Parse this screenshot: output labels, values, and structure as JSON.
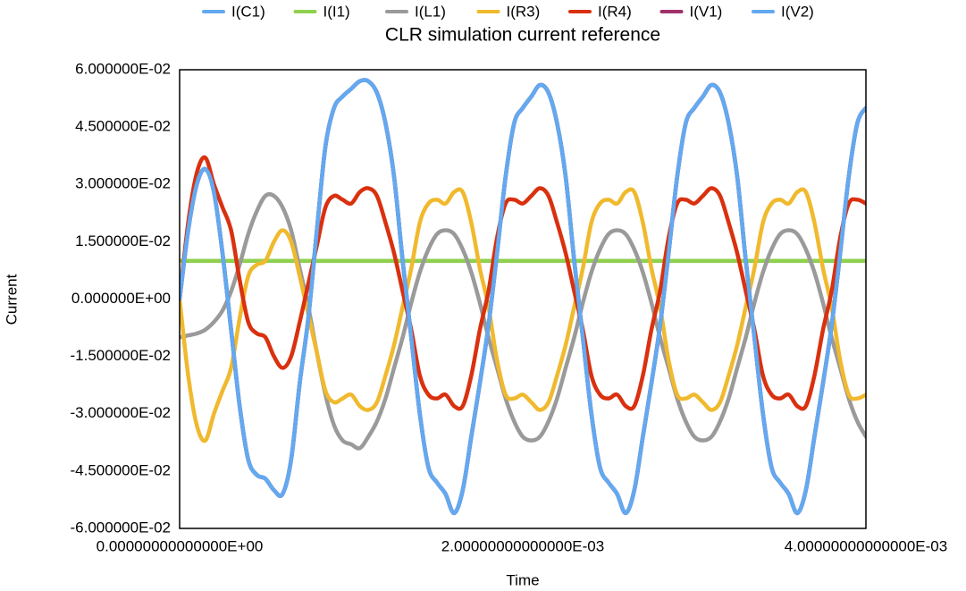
{
  "chart_data": {
    "type": "line",
    "title": "CLR simulation current reference",
    "x_label": "Time",
    "y_label": "Current",
    "x": [
      0,
      5e-05,
      0.0001,
      0.00015,
      0.0002,
      0.00025,
      0.0003,
      0.00035,
      0.0004,
      0.00045,
      0.0005,
      0.00055,
      0.0006,
      0.00065,
      0.0007,
      0.00075,
      0.0008,
      0.00085,
      0.0009,
      0.00095,
      0.001,
      0.00105,
      0.0011,
      0.00115,
      0.0012,
      0.00125,
      0.0013,
      0.00135,
      0.0014,
      0.00145,
      0.0015,
      0.00155,
      0.0016,
      0.00165,
      0.0017,
      0.00175,
      0.0018,
      0.00185,
      0.0019,
      0.00195,
      0.002,
      0.00205,
      0.0021,
      0.00215,
      0.0022,
      0.00225,
      0.0023,
      0.00235,
      0.0024,
      0.00245,
      0.0025,
      0.00255,
      0.0026,
      0.00265,
      0.0027,
      0.00275,
      0.0028,
      0.00285,
      0.0029,
      0.00295,
      0.003,
      0.00305,
      0.0031,
      0.00315,
      0.0032,
      0.00325,
      0.0033,
      0.00335,
      0.0034,
      0.00345,
      0.0035,
      0.00355,
      0.0036,
      0.00365,
      0.0037,
      0.00375,
      0.0038,
      0.00385,
      0.0039,
      0.00395,
      0.004
    ],
    "series": [
      {
        "name": "I(C1)",
        "color": "#63a9f0",
        "values": [
          0,
          0.018,
          0.03,
          0.034,
          0.028,
          0.012,
          -0.008,
          -0.028,
          -0.042,
          -0.046,
          -0.047,
          -0.05,
          -0.051,
          -0.042,
          -0.022,
          -0.005,
          0.018,
          0.04,
          0.05,
          0.053,
          0.055,
          0.057,
          0.057,
          0.054,
          0.046,
          0.032,
          0.01,
          -0.01,
          -0.03,
          -0.044,
          -0.048,
          -0.051,
          -0.056,
          -0.05,
          -0.036,
          -0.022,
          -0.007,
          0.012,
          0.032,
          0.046,
          0.05,
          0.053,
          0.056,
          0.054,
          0.046,
          0.032,
          0.01,
          -0.01,
          -0.03,
          -0.044,
          -0.048,
          -0.051,
          -0.056,
          -0.05,
          -0.036,
          -0.022,
          -0.007,
          0.012,
          0.032,
          0.046,
          0.05,
          0.053,
          0.056,
          0.054,
          0.046,
          0.032,
          0.01,
          -0.01,
          -0.03,
          -0.044,
          -0.048,
          -0.051,
          -0.056,
          -0.05,
          -0.036,
          -0.022,
          -0.007,
          0.012,
          0.032,
          0.046,
          0.05
        ]
      },
      {
        "name": "I(I1)",
        "color": "#8fd14f",
        "values": [
          0.01,
          0.01,
          0.01,
          0.01,
          0.01,
          0.01,
          0.01,
          0.01,
          0.01,
          0.01,
          0.01,
          0.01,
          0.01,
          0.01,
          0.01,
          0.01,
          0.01,
          0.01,
          0.01,
          0.01,
          0.01,
          0.01,
          0.01,
          0.01,
          0.01,
          0.01,
          0.01,
          0.01,
          0.01,
          0.01,
          0.01,
          0.01,
          0.01,
          0.01,
          0.01,
          0.01,
          0.01,
          0.01,
          0.01,
          0.01,
          0.01,
          0.01,
          0.01,
          0.01,
          0.01,
          0.01,
          0.01,
          0.01,
          0.01,
          0.01,
          0.01,
          0.01,
          0.01,
          0.01,
          0.01,
          0.01,
          0.01,
          0.01,
          0.01,
          0.01,
          0.01,
          0.01,
          0.01,
          0.01,
          0.01,
          0.01,
          0.01,
          0.01,
          0.01,
          0.01,
          0.01,
          0.01,
          0.01,
          0.01,
          0.01,
          0.01,
          0.01,
          0.01,
          0.01,
          0.01,
          0.01
        ]
      },
      {
        "name": "I(L1)",
        "color": "#9a9a9a",
        "values": [
          -0.01,
          -0.0095,
          -0.009,
          -0.008,
          -0.006,
          -0.003,
          0.002,
          0.009,
          0.017,
          0.023,
          0.027,
          0.027,
          0.024,
          0.018,
          0.008,
          -0.002,
          -0.014,
          -0.025,
          -0.033,
          -0.037,
          -0.038,
          -0.039,
          -0.036,
          -0.032,
          -0.026,
          -0.018,
          -0.01,
          -0.001,
          0.007,
          0.013,
          0.017,
          0.018,
          0.017,
          0.013,
          0.007,
          -0.001,
          -0.01,
          -0.018,
          -0.026,
          -0.032,
          -0.036,
          -0.037,
          -0.036,
          -0.032,
          -0.026,
          -0.018,
          -0.01,
          -0.001,
          0.007,
          0.013,
          0.017,
          0.018,
          0.017,
          0.013,
          0.007,
          -0.001,
          -0.01,
          -0.018,
          -0.026,
          -0.032,
          -0.036,
          -0.037,
          -0.036,
          -0.032,
          -0.026,
          -0.018,
          -0.01,
          -0.001,
          0.007,
          0.013,
          0.017,
          0.018,
          0.017,
          0.013,
          0.007,
          -0.001,
          -0.01,
          -0.018,
          -0.026,
          -0.032,
          -0.036
        ]
      },
      {
        "name": "I(R3)",
        "color": "#f0b92e",
        "values": [
          0,
          -0.02,
          -0.033,
          -0.037,
          -0.03,
          -0.024,
          -0.018,
          -0.005,
          0.006,
          0.009,
          0.01,
          0.015,
          0.018,
          0.015,
          0.006,
          -0.004,
          -0.014,
          -0.024,
          -0.027,
          -0.026,
          -0.025,
          -0.028,
          -0.029,
          -0.027,
          -0.02,
          -0.012,
          -0.002,
          0.008,
          0.02,
          0.025,
          0.026,
          0.025,
          0.028,
          0.028,
          0.02,
          0.008,
          -0.002,
          -0.016,
          -0.025,
          -0.026,
          -0.025,
          -0.027,
          -0.029,
          -0.027,
          -0.02,
          -0.012,
          -0.002,
          0.008,
          0.02,
          0.025,
          0.026,
          0.025,
          0.028,
          0.028,
          0.02,
          0.008,
          -0.002,
          -0.016,
          -0.025,
          -0.026,
          -0.025,
          -0.027,
          -0.029,
          -0.027,
          -0.02,
          -0.012,
          -0.002,
          0.008,
          0.02,
          0.025,
          0.026,
          0.025,
          0.028,
          0.028,
          0.02,
          0.008,
          -0.002,
          -0.016,
          -0.025,
          -0.026,
          -0.025
        ]
      },
      {
        "name": "I(R4)",
        "color": "#d9310f",
        "values": [
          0,
          0.02,
          0.033,
          0.037,
          0.03,
          0.024,
          0.018,
          0.005,
          -0.006,
          -0.009,
          -0.01,
          -0.015,
          -0.018,
          -0.015,
          -0.006,
          0.004,
          0.014,
          0.024,
          0.027,
          0.026,
          0.025,
          0.028,
          0.029,
          0.027,
          0.02,
          0.012,
          0.002,
          -0.008,
          -0.02,
          -0.025,
          -0.026,
          -0.025,
          -0.028,
          -0.028,
          -0.02,
          -0.008,
          0.002,
          0.016,
          0.025,
          0.026,
          0.025,
          0.027,
          0.029,
          0.027,
          0.02,
          0.012,
          0.002,
          -0.008,
          -0.02,
          -0.025,
          -0.026,
          -0.025,
          -0.028,
          -0.028,
          -0.02,
          -0.008,
          0.002,
          0.016,
          0.025,
          0.026,
          0.025,
          0.027,
          0.029,
          0.027,
          0.02,
          0.012,
          0.002,
          -0.008,
          -0.02,
          -0.025,
          -0.026,
          -0.025,
          -0.028,
          -0.028,
          -0.02,
          -0.008,
          0.002,
          0.016,
          0.025,
          0.026,
          0.025
        ]
      },
      {
        "name": "I(V1)",
        "color": "#a0306a",
        "values": [
          0,
          0.018,
          0.03,
          0.034,
          0.028,
          0.012,
          -0.008,
          -0.028,
          -0.042,
          -0.046,
          -0.047,
          -0.05,
          -0.051,
          -0.042,
          -0.022,
          -0.005,
          0.018,
          0.04,
          0.05,
          0.053,
          0.055,
          0.057,
          0.057,
          0.054,
          0.046,
          0.032,
          0.01,
          -0.01,
          -0.03,
          -0.044,
          -0.048,
          -0.051,
          -0.056,
          -0.05,
          -0.036,
          -0.022,
          -0.007,
          0.012,
          0.032,
          0.046,
          0.05,
          0.053,
          0.056,
          0.054,
          0.046,
          0.032,
          0.01,
          -0.01,
          -0.03,
          -0.044,
          -0.048,
          -0.051,
          -0.056,
          -0.05,
          -0.036,
          -0.022,
          -0.007,
          0.012,
          0.032,
          0.046,
          0.05,
          0.053,
          0.056,
          0.054,
          0.046,
          0.032,
          0.01,
          -0.01,
          -0.03,
          -0.044,
          -0.048,
          -0.051,
          -0.056,
          -0.05,
          -0.036,
          -0.022,
          -0.007,
          0.012,
          0.032,
          0.046,
          0.05
        ]
      },
      {
        "name": "I(V2)",
        "color": "#63a9f0",
        "values": [
          0,
          0.018,
          0.03,
          0.034,
          0.028,
          0.012,
          -0.008,
          -0.028,
          -0.042,
          -0.046,
          -0.047,
          -0.05,
          -0.051,
          -0.042,
          -0.022,
          -0.005,
          0.018,
          0.04,
          0.05,
          0.053,
          0.055,
          0.057,
          0.057,
          0.054,
          0.046,
          0.032,
          0.01,
          -0.01,
          -0.03,
          -0.044,
          -0.048,
          -0.051,
          -0.056,
          -0.05,
          -0.036,
          -0.022,
          -0.007,
          0.012,
          0.032,
          0.046,
          0.05,
          0.053,
          0.056,
          0.054,
          0.046,
          0.032,
          0.01,
          -0.01,
          -0.03,
          -0.044,
          -0.048,
          -0.051,
          -0.056,
          -0.05,
          -0.036,
          -0.022,
          -0.007,
          0.012,
          0.032,
          0.046,
          0.05,
          0.053,
          0.056,
          0.054,
          0.046,
          0.032,
          0.01,
          -0.01,
          -0.03,
          -0.044,
          -0.048,
          -0.051,
          -0.056,
          -0.05,
          -0.036,
          -0.022,
          -0.007,
          0.012,
          0.032,
          0.046,
          0.05
        ]
      }
    ],
    "xlim": [
      0,
      0.004
    ],
    "xticks": [
      {
        "value": 0,
        "label": "0.00000000000000E+00"
      },
      {
        "value": 0.002,
        "label": "2.00000000000000E-03"
      },
      {
        "value": 0.004,
        "label": "4.00000000000000E-03"
      }
    ],
    "ylim": [
      -0.06,
      0.06
    ],
    "yticks": [
      {
        "value": -0.06,
        "label": "-6.000000E-02"
      },
      {
        "value": -0.045,
        "label": "-4.500000E-02"
      },
      {
        "value": -0.03,
        "label": "-3.000000E-02"
      },
      {
        "value": -0.015,
        "label": "-1.500000E-02"
      },
      {
        "value": 0,
        "label": "0.000000E+00"
      },
      {
        "value": 0.015,
        "label": "1.500000E-02"
      },
      {
        "value": 0.03,
        "label": "3.000000E-02"
      },
      {
        "value": 0.045,
        "label": "4.500000E-02"
      },
      {
        "value": 0.06,
        "label": "6.000000E-02"
      }
    ],
    "grid": false,
    "legend": "top"
  }
}
